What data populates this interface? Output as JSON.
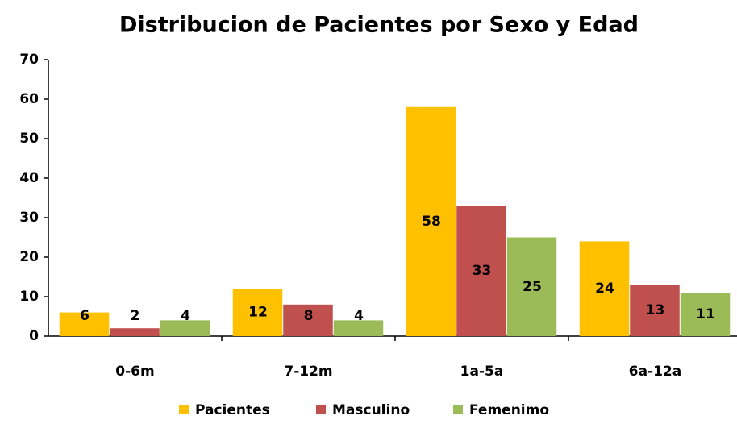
{
  "chart_data": {
    "type": "bar",
    "title": "Distribucion de Pacientes por Sexo y Edad",
    "categories": [
      "0-6m",
      "7-12m",
      "1a-5a",
      "6a-12a"
    ],
    "series": [
      {
        "name": "Pacientes",
        "color": "#ffc000",
        "values": [
          6,
          12,
          58,
          24
        ]
      },
      {
        "name": "Masculino",
        "color": "#c0504d",
        "values": [
          2,
          8,
          33,
          13
        ]
      },
      {
        "name": "Femenimo",
        "color": "#9bbb59",
        "values": [
          4,
          4,
          25,
          11
        ]
      }
    ],
    "ylim": [
      0,
      70
    ],
    "yticks": [
      0,
      10,
      20,
      30,
      40,
      50,
      60,
      70
    ],
    "grid": false,
    "legend": "bottom"
  }
}
